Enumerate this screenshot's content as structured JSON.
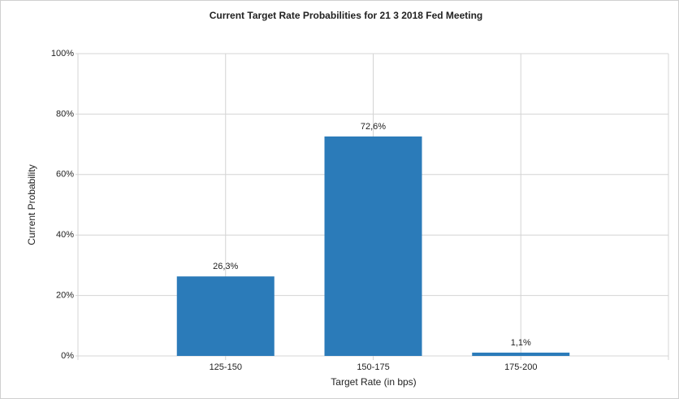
{
  "chart_data": {
    "type": "bar",
    "title": "Current Target Rate Probabilities for 21 3 2018 Fed Meeting",
    "x_label": "Target Rate (in bps)",
    "y_label": "Current Probability",
    "categories": [
      "125-150",
      "150-175",
      "175-200"
    ],
    "values": [
      26.3,
      72.6,
      1.1
    ],
    "value_labels": [
      "26,3%",
      "72,6%",
      "1,1%"
    ],
    "color": "#2b7bb9",
    "ylim": [
      0,
      100
    ],
    "yticks": [
      {
        "value": 0,
        "label": "0%"
      },
      {
        "value": 20,
        "label": "20%"
      },
      {
        "value": 40,
        "label": "40%"
      },
      {
        "value": 60,
        "label": "60%"
      },
      {
        "value": 80,
        "label": "80%"
      },
      {
        "value": 100,
        "label": "100%"
      }
    ],
    "grid": true
  }
}
